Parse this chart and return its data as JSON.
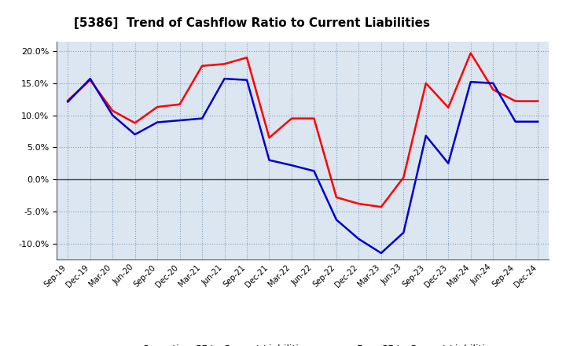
{
  "title": "[5386]  Trend of Cashflow Ratio to Current Liabilities",
  "ylim": [
    -0.125,
    0.215
  ],
  "yticks": [
    -0.1,
    -0.05,
    0.0,
    0.05,
    0.1,
    0.15,
    0.2
  ],
  "x_labels": [
    "Sep-19",
    "Dec-19",
    "Mar-20",
    "Jun-20",
    "Sep-20",
    "Dec-20",
    "Mar-21",
    "Jun-21",
    "Sep-21",
    "Dec-21",
    "Mar-22",
    "Jun-22",
    "Sep-22",
    "Dec-22",
    "Mar-23",
    "Jun-23",
    "Sep-23",
    "Dec-23",
    "Mar-24",
    "Jun-24",
    "Sep-24",
    "Dec-24"
  ],
  "operating_cf": [
    0.123,
    0.155,
    0.107,
    0.088,
    0.113,
    0.117,
    0.177,
    0.18,
    0.19,
    0.065,
    0.095,
    0.095,
    -0.028,
    -0.038,
    -0.043,
    0.003,
    0.15,
    0.112,
    0.197,
    0.14,
    0.122,
    0.122
  ],
  "free_cf": [
    0.121,
    0.157,
    0.1,
    0.07,
    0.089,
    0.092,
    0.095,
    0.157,
    0.155,
    0.03,
    0.022,
    0.013,
    -0.063,
    -0.093,
    -0.115,
    -0.083,
    0.068,
    0.025,
    0.152,
    0.15,
    0.09,
    0.09
  ],
  "operating_color": "#ff0000",
  "free_color": "#0000cc",
  "bg_color": "#ffffff",
  "plot_bg_color": "#dce6f0",
  "grid_color": "#7f9fbf",
  "legend_labels": [
    "Operating CF to Current Liabilities",
    "Free CF to Current Liabilities"
  ]
}
